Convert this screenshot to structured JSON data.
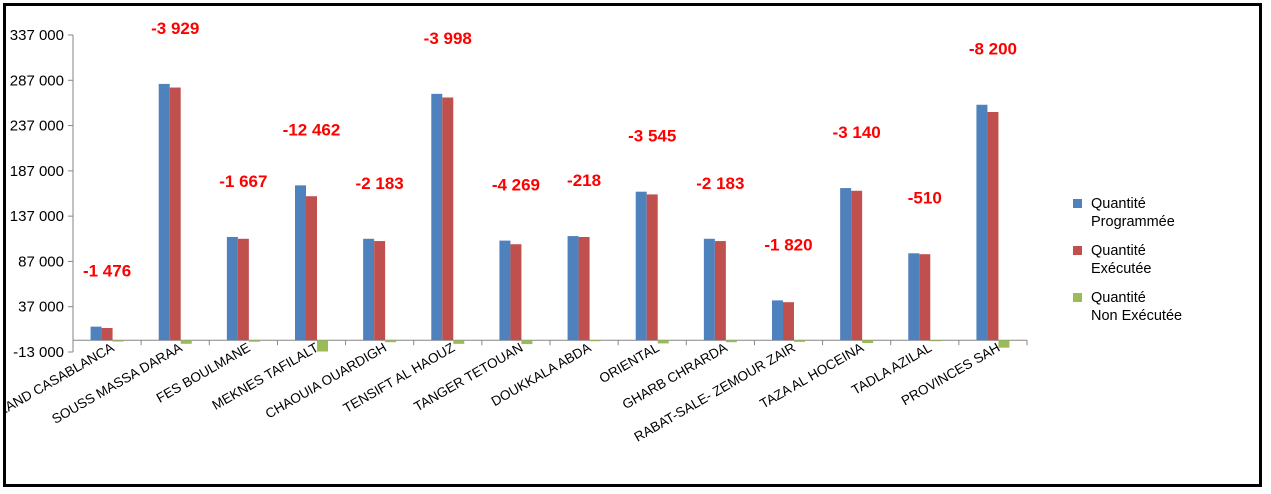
{
  "chart_data": {
    "type": "bar",
    "categories": [
      "GRAND CASABLANCA",
      "SOUSS MASSA DARAA",
      "FES BOULMANE",
      "MEKNES TAFILALT",
      "CHAOUIA OUARDIGH",
      "TENSIFT AL HAOUZ",
      "TANGER TETOUAN",
      "DOUKKALA ABDA",
      "ORIENTAL",
      "GHARB CHRARDA",
      "RABAT-SALE- ZEMOUR ZAIR",
      "TAZA AL HOCEINA",
      "TADLA AZILAL",
      "PROVINCES SAH"
    ],
    "series": [
      {
        "name": "Quantité Programmée",
        "legend_lines": [
          "Quantité",
          "Programmée"
        ],
        "color": "#4F81BD",
        "values": [
          15000,
          283000,
          114000,
          171000,
          112000,
          272000,
          110000,
          115000,
          164000,
          112000,
          44000,
          168000,
          96000,
          260000
        ]
      },
      {
        "name": "Quantité Exécutée",
        "legend_lines": [
          "Quantité",
          "Exécutée"
        ],
        "color": "#C0504D",
        "values": [
          13500,
          279000,
          112000,
          159000,
          109500,
          268000,
          106000,
          114000,
          161000,
          109500,
          42000,
          165000,
          95000,
          252000
        ]
      },
      {
        "name": "Quantité Non Exécutée",
        "legend_lines": [
          "Quantité",
          "Non Exécutée"
        ],
        "color": "#9BBB59",
        "values": [
          -1476,
          -3929,
          -1667,
          -12462,
          -2183,
          -3998,
          -4269,
          -218,
          -3545,
          -2183,
          -1820,
          -3140,
          -510,
          -8200
        ]
      }
    ],
    "data_labels": [
      "-1 476",
      "-3 929",
      "-1 667",
      "-12 462",
      "-2 183",
      "-3 998",
      "-4 269",
      "-218",
      "-3 545",
      "-2 183",
      "-1 820",
      "-3 140",
      "-510",
      "-8 200"
    ],
    "y_ticks": [
      {
        "value": -13000,
        "label": "-13 000"
      },
      {
        "value": 37000,
        "label": "37 000"
      },
      {
        "value": 87000,
        "label": "87 000"
      },
      {
        "value": 137000,
        "label": "137 000"
      },
      {
        "value": 187000,
        "label": "187 000"
      },
      {
        "value": 237000,
        "label": "237 000"
      },
      {
        "value": 287000,
        "label": "287 000"
      },
      {
        "value": 337000,
        "label": "337 000"
      }
    ],
    "ylim": [
      -13000,
      337000
    ],
    "grid": false,
    "legend_position": "right",
    "title": "",
    "xlabel": "",
    "ylabel": ""
  }
}
